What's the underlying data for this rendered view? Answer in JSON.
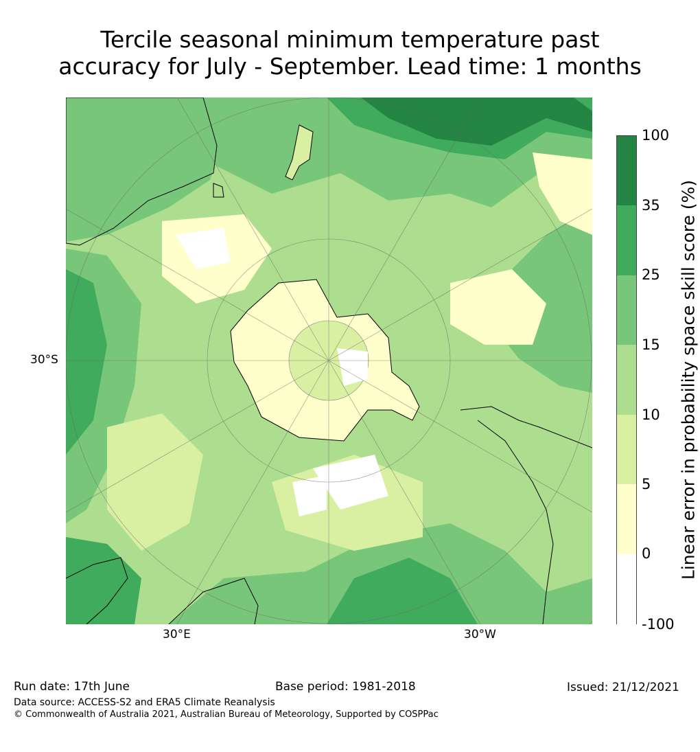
{
  "title_line1": "Tercile seasonal minimum temperature past",
  "title_line2": "accuracy for July - September. Lead time: 1 months",
  "map": {
    "lat_label": "30°S",
    "lon_label_left": "30°E",
    "lon_label_right": "30°W"
  },
  "colorbar": {
    "label": "Linear error in probability space skill score (%)",
    "ticks": [
      "100",
      "35",
      "25",
      "15",
      "10",
      "5",
      "0",
      "-100"
    ],
    "colors": [
      "#238443",
      "#41ab5d",
      "#78c679",
      "#addd8e",
      "#d9f0a3",
      "#ffffcc",
      "#ffffff"
    ]
  },
  "footer": {
    "run_date": "Run date: 17th June",
    "base_period": "Base period: 1981-2018",
    "issued": "Issued: 21/12/2021",
    "data_source": "Data source: ACCESS-S2 and ERA5 Climate Reanalysis",
    "copyright": "© Commonwealth of Australia 2021, Australian Bureau of Meteorology, Supported by COSPPac"
  }
}
